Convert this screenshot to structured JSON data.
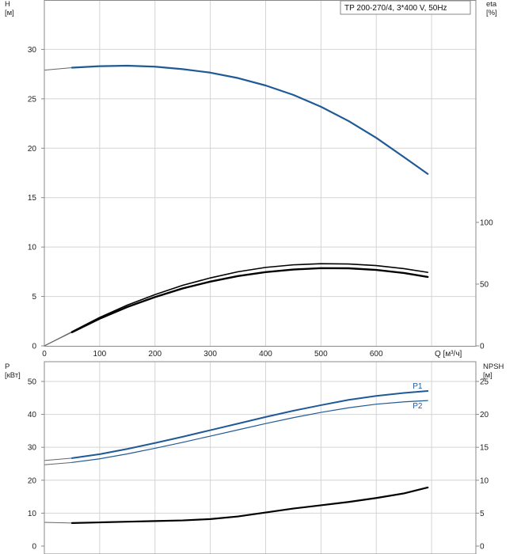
{
  "chart_data": [
    {
      "type": "line",
      "legend": "TP 200-270/4, 3*400 V, 50Hz",
      "xlabel": "Q [м³/ч]",
      "ylabel_left": "H\n[м]",
      "ylabel_right": "eta\n[%]",
      "xlim": [
        0,
        780
      ],
      "x_ticks": [
        0,
        100,
        200,
        300,
        400,
        500,
        600
      ],
      "ylim_left": [
        0,
        35
      ],
      "y_ticks_left": [
        0,
        5,
        10,
        15,
        20,
        25,
        30
      ],
      "ylim_right": [
        0,
        280
      ],
      "y_ticks_right": [
        0,
        50,
        100
      ],
      "series": [
        {
          "axis": "left",
          "color": "#1f5a96",
          "x": [
            0,
            50,
            100,
            150,
            200,
            250,
            300,
            350,
            400,
            450,
            500,
            550,
            600,
            650,
            693
          ],
          "y": [
            27.9,
            28.15,
            28.3,
            28.35,
            28.25,
            28.0,
            27.65,
            27.1,
            26.35,
            25.4,
            24.2,
            22.75,
            21.05,
            19.1,
            17.4
          ]
        },
        {
          "axis": "right",
          "color": "#000000",
          "x": [
            0,
            50,
            100,
            150,
            200,
            250,
            300,
            350,
            400,
            450,
            500,
            550,
            600,
            650,
            693
          ],
          "y": [
            0,
            11.5,
            23,
            33,
            41.5,
            49,
            55,
            60,
            63.5,
            65.6,
            66.5,
            66.3,
            65,
            62.5,
            59.5
          ]
        },
        {
          "axis": "right",
          "color": "#000000",
          "x": [
            0,
            50,
            100,
            150,
            200,
            250,
            300,
            350,
            400,
            450,
            500,
            550,
            600,
            650,
            693
          ],
          "y": [
            0,
            11,
            22,
            31.5,
            39.5,
            46.5,
            52,
            56.5,
            59.7,
            61.8,
            62.9,
            62.8,
            61.5,
            59,
            55.8
          ]
        }
      ]
    },
    {
      "type": "line",
      "xlabel": "",
      "ylabel_left": "P\n[кВт]",
      "ylabel_right": "NPSH\n[м]",
      "xlim": [
        0,
        780
      ],
      "ylim_left": [
        0,
        56
      ],
      "y_ticks_left": [
        0,
        10,
        20,
        30,
        40,
        50
      ],
      "ylim_right": [
        0,
        28
      ],
      "y_ticks_right": [
        0,
        5,
        10,
        15,
        20,
        25
      ],
      "series": [
        {
          "name": "P1",
          "axis": "left",
          "color": "#1f5a96",
          "x": [
            0,
            50,
            100,
            150,
            200,
            250,
            300,
            350,
            400,
            450,
            500,
            550,
            600,
            650,
            693
          ],
          "y": [
            26,
            26.7,
            27.9,
            29.5,
            31.3,
            33.2,
            35.2,
            37.2,
            39.2,
            41.1,
            42.8,
            44.4,
            45.6,
            46.5,
            47.1
          ]
        },
        {
          "name": "P2",
          "axis": "left",
          "color": "#1f5a96",
          "x": [
            0,
            50,
            100,
            150,
            200,
            250,
            300,
            350,
            400,
            450,
            500,
            550,
            600,
            650,
            693
          ],
          "y": [
            24.7,
            25.4,
            26.5,
            28,
            29.7,
            31.5,
            33.4,
            35.3,
            37.2,
            39,
            40.6,
            42,
            43.1,
            43.8,
            44.2
          ]
        },
        {
          "axis": "right",
          "color": "#000000",
          "x": [
            0,
            50,
            100,
            150,
            200,
            250,
            300,
            350,
            400,
            450,
            500,
            550,
            600,
            650,
            693
          ],
          "y": [
            3.6,
            3.5,
            3.6,
            3.7,
            3.8,
            3.9,
            4.1,
            4.5,
            5.1,
            5.7,
            6.2,
            6.7,
            7.3,
            8.0,
            8.9
          ]
        }
      ]
    }
  ]
}
